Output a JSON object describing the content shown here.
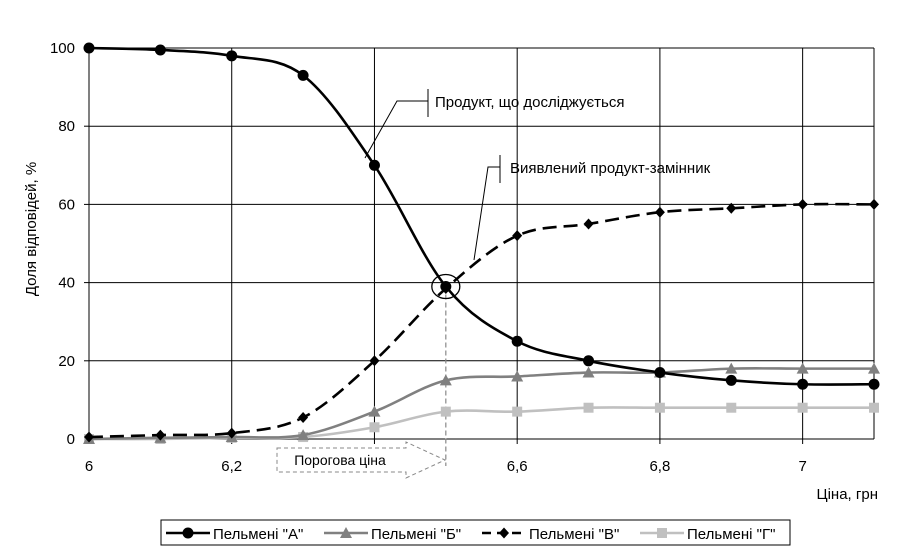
{
  "chart_data": {
    "type": "line",
    "xlabel": "Ціна, грн",
    "ylabel": "Доля відповідей, %",
    "xlim": [
      6,
      7.1
    ],
    "ylim": [
      0,
      100
    ],
    "x_ticks": [
      6,
      6.2,
      6.4,
      6.6,
      6.8,
      7
    ],
    "x_tick_labels": [
      "6",
      "6,2",
      "",
      "6,6",
      "6,8",
      "7"
    ],
    "y_ticks": [
      0,
      20,
      40,
      60,
      80,
      100
    ],
    "y_tick_labels": [
      "0",
      "20",
      "40",
      "60",
      "80",
      "100"
    ],
    "grid": true,
    "legend_position": "bottom",
    "x": [
      6.0,
      6.1,
      6.2,
      6.3,
      6.4,
      6.5,
      6.6,
      6.7,
      6.8,
      6.9,
      7.0,
      7.1
    ],
    "series": [
      {
        "name": "Пельмені \"А\"",
        "marker": "circle",
        "color": "#000000",
        "dash": "solid",
        "values": [
          100,
          99.5,
          98,
          93,
          70,
          39,
          25,
          20,
          17,
          15,
          14,
          14
        ]
      },
      {
        "name": "Пельмені \"Б\"",
        "marker": "triangle",
        "color": "#808080",
        "dash": "solid",
        "values": [
          0,
          0.3,
          0.5,
          1,
          7,
          15,
          16,
          17,
          17,
          18,
          18,
          18
        ]
      },
      {
        "name": "Пельмені \"В\"",
        "marker": "diamond",
        "color": "#000000",
        "dash": "dashed",
        "values": [
          0.5,
          1,
          1.5,
          5.5,
          20,
          38.5,
          52,
          55,
          58,
          59,
          60,
          60
        ]
      },
      {
        "name": "Пельмені \"Г\"",
        "marker": "square",
        "color": "#c0c0c0",
        "dash": "solid",
        "values": [
          0,
          0,
          0.3,
          0.5,
          3,
          7,
          7,
          8,
          8,
          8,
          8,
          8
        ]
      }
    ],
    "annotations": {
      "product": "Продукт, що досліджується",
      "substitute": "Виявлений продукт-замінник",
      "threshold": "Порогова ціна",
      "threshold_x": 6.5,
      "intersection": {
        "x": 6.5,
        "y": 39
      }
    }
  }
}
